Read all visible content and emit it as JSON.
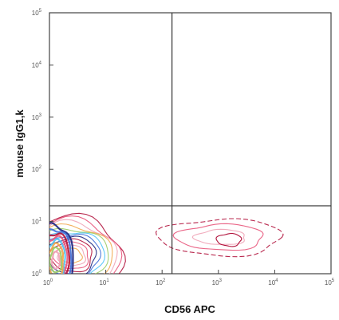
{
  "chart_data": {
    "type": "scatter",
    "subtype": "flow-cytometry-contour-plot",
    "title": "",
    "xlabel": "CD56 APC",
    "ylabel": "mouse IgG1,k",
    "x_scale": "log",
    "y_scale": "log",
    "xlim": [
      1,
      100000
    ],
    "ylim": [
      1,
      100000
    ],
    "x_ticks": [
      {
        "value": 1,
        "base": "10",
        "exp": "0"
      },
      {
        "value": 10,
        "base": "10",
        "exp": "1"
      },
      {
        "value": 100,
        "base": "10",
        "exp": "2"
      },
      {
        "value": 1000,
        "base": "10",
        "exp": "3"
      },
      {
        "value": 10000,
        "base": "10",
        "exp": "4"
      },
      {
        "value": 100000,
        "base": "10",
        "exp": "5"
      }
    ],
    "y_ticks": [
      {
        "value": 1,
        "base": "10",
        "exp": "0"
      },
      {
        "value": 10,
        "base": "10",
        "exp": "1"
      },
      {
        "value": 100,
        "base": "10",
        "exp": "2"
      },
      {
        "value": 1000,
        "base": "10",
        "exp": "3"
      },
      {
        "value": 10000,
        "base": "10",
        "exp": "4"
      },
      {
        "value": 100000,
        "base": "10",
        "exp": "5"
      }
    ],
    "quadrant_gates": {
      "x": 150,
      "y": 20
    },
    "grid": false,
    "legend": "none",
    "populations": [
      {
        "center": [
          2.5,
          2.2
        ],
        "spread_decades": [
          0.9,
          0.75
        ],
        "density": "high"
      },
      {
        "center": [
          1.3,
          1.8
        ],
        "spread_decades": [
          0.3,
          0.7
        ],
        "density": "very-high"
      },
      {
        "center": [
          1100,
          5
        ],
        "spread_decades": [
          1.1,
          0.35
        ],
        "density": "low"
      }
    ],
    "contour_colors": [
      "#b0103a",
      "#e8547a",
      "#f0a3b6",
      "#f2a64a",
      "#9ccc65",
      "#4fc3f7",
      "#3f6fd8",
      "#1a237e"
    ]
  }
}
